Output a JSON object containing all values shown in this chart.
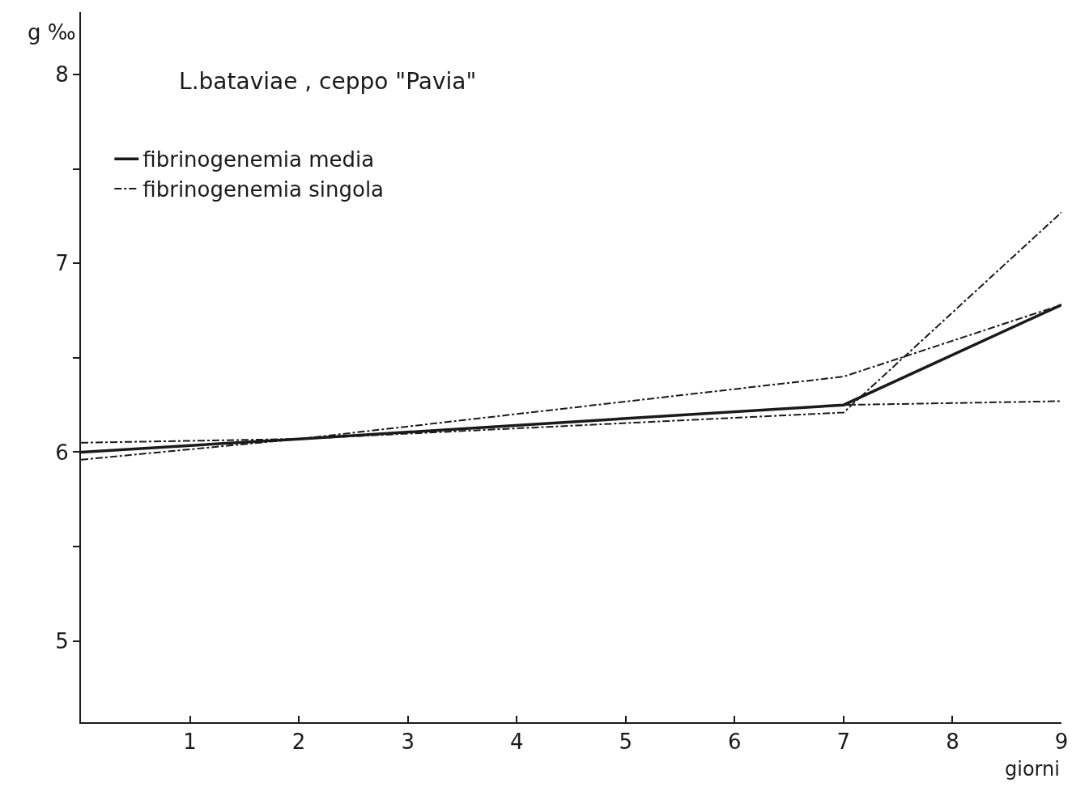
{
  "chart_data": {
    "type": "line",
    "title": "L.bataviae , ceppo \"Pavia\"",
    "xlabel": "giorni",
    "ylabel": "g ‰",
    "xlim": [
      0,
      9
    ],
    "xticks": [
      1,
      2,
      3,
      4,
      5,
      6,
      7,
      8,
      9
    ],
    "ylim": [
      4.57,
      8.33
    ],
    "yticks": [
      5,
      {
        "value": 5.5,
        "label": null
      },
      6,
      {
        "value": 6.5,
        "label": null
      },
      7,
      {
        "value": 7.5,
        "label": null
      },
      8
    ],
    "legend": "top left",
    "marker": "none",
    "series": [
      {
        "name": "fibrinogenemia media",
        "color": "#1a1a1a",
        "line_style": "solid",
        "x": [
          0,
          2,
          7,
          9
        ],
        "values": [
          6.0,
          6.07,
          6.25,
          6.78
        ]
      },
      {
        "name": "fibrinogenemia singola",
        "color": "#1a1a1a",
        "line_style": "dashdot",
        "x": [
          0,
          2,
          7,
          9
        ],
        "values": [
          6.05,
          6.07,
          6.4,
          6.78
        ]
      },
      {
        "color": "#1a1a1a",
        "line_style": "dashdot",
        "x": [
          0,
          2,
          7,
          9
        ],
        "values": [
          5.96,
          6.07,
          6.21,
          7.27
        ]
      },
      {
        "color": "#1a1a1a",
        "line_style": "dashdot",
        "x": [
          7,
          9
        ],
        "values": [
          6.25,
          6.27
        ]
      }
    ]
  }
}
